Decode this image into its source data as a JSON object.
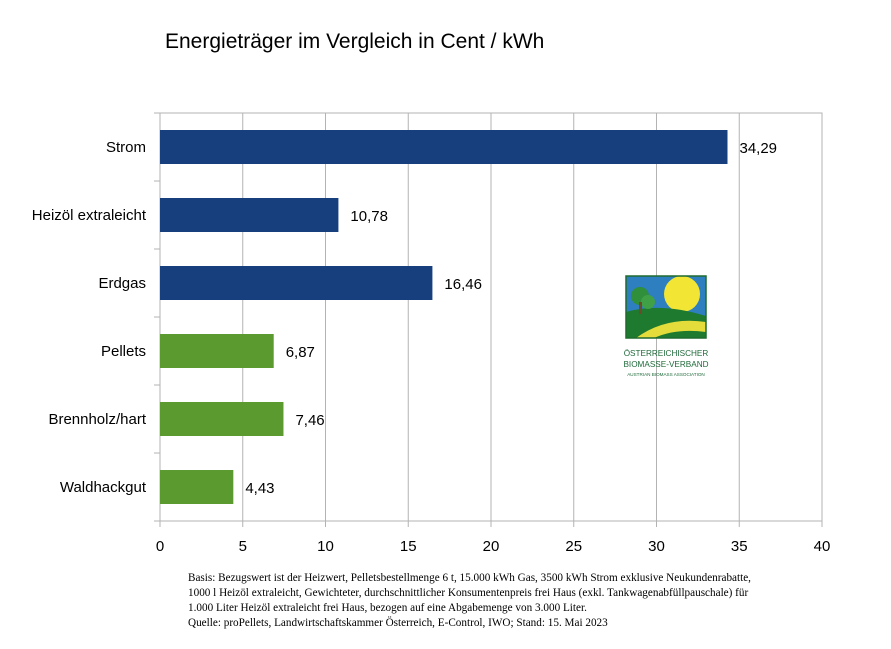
{
  "chart_data": {
    "type": "bar",
    "orientation": "horizontal",
    "title": "Energieträger im Vergleich in Cent / kWh",
    "categories": [
      "Strom",
      "Heizöl extraleicht",
      "Erdgas",
      "Pellets",
      "Brennholz/hart",
      "Waldhackgut"
    ],
    "values": [
      34.29,
      10.78,
      16.46,
      6.87,
      7.46,
      4.43
    ],
    "value_labels": [
      "34,29",
      "10,78",
      "16,46",
      "6,87",
      "7,46",
      "4,43"
    ],
    "bar_colors": [
      "#173f7e",
      "#173f7e",
      "#173f7e",
      "#5a9a2f",
      "#5a9a2f",
      "#5a9a2f"
    ],
    "xlim": [
      0,
      40
    ],
    "xticks": [
      0,
      5,
      10,
      15,
      20,
      25,
      30,
      35,
      40
    ],
    "grid": true,
    "xlabel": "",
    "ylabel": ""
  },
  "notes": {
    "line1": "Basis: Bezugswert ist der Heizwert, Pelletsbestellmenge 6 t, 15.000 kWh Gas, 3500 kWh Strom exklusive Neukundenrabatte,",
    "line2": "1000 l Heizöl extraleicht, Gewichteter, durchschnittlicher Konsumentenpreis frei Haus (exkl. Tankwagenabfüllpauschale) für",
    "line3": "1.000 Liter Heizöl extraleicht frei Haus, bezogen auf eine Abgabemenge von 3.000 Liter.",
    "line4": "Quelle: proPellets, Landwirtschaftskammer Österreich, E-Control, IWO; Stand: 15. Mai 2023"
  },
  "logo": {
    "line1": "ÖSTERREICHISCHER",
    "line2": "BIOMASSE-VERBAND",
    "line3": "AUSTRIAN BIOMASS ASSOCIATION",
    "colors": {
      "sky": "#2e7fc0",
      "sun": "#f3e534",
      "field_dark": "#1e7a2e",
      "field_light": "#e4dc3a",
      "tree": "#2f8f3a"
    }
  }
}
